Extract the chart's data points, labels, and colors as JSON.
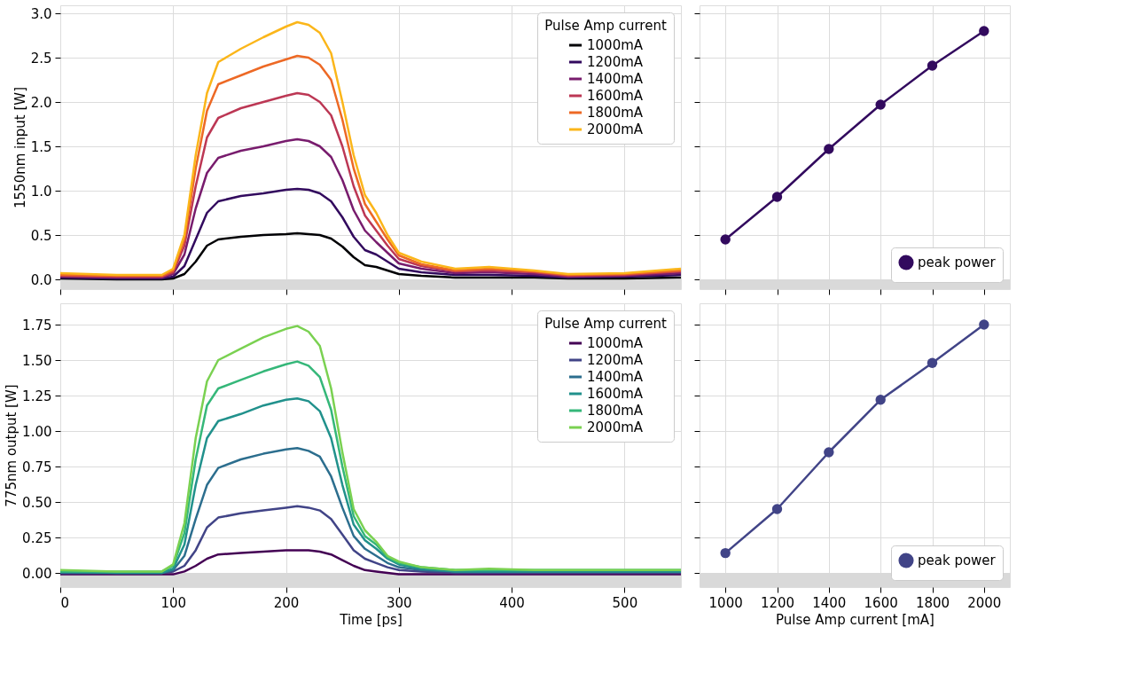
{
  "chart_data": [
    {
      "type": "line",
      "ylabel": "1550nm input [W]",
      "legend_title": "Pulse Amp current",
      "legend": "top right",
      "grid": true,
      "tick_labels": "y",
      "xlim": [
        0,
        550
      ],
      "xticks": [
        0,
        100,
        200,
        300,
        400,
        500
      ],
      "ylim": [
        -0.11,
        3.09
      ],
      "yticks": [
        {
          "value": 0,
          "label": "0.0"
        },
        0.5,
        {
          "value": 1,
          "label": "1.0"
        },
        1.5,
        {
          "value": 2,
          "label": "2.0"
        },
        2.5,
        {
          "value": 3,
          "label": "3.0"
        }
      ],
      "bands": [
        {
          "axis": "y",
          "from": -0.11,
          "to": 0,
          "color": "#d9d9d9"
        }
      ],
      "x": [
        0,
        50,
        90,
        100,
        110,
        120,
        130,
        140,
        160,
        180,
        200,
        210,
        220,
        230,
        240,
        250,
        260,
        270,
        280,
        290,
        300,
        320,
        350,
        380,
        420,
        450,
        500,
        550
      ],
      "series": [
        {
          "name": "1000mA",
          "color": "#000004",
          "values": [
            0.01,
            0.0,
            0.0,
            0.01,
            0.06,
            0.2,
            0.38,
            0.45,
            0.48,
            0.5,
            0.51,
            0.52,
            0.51,
            0.5,
            0.46,
            0.37,
            0.25,
            0.16,
            0.14,
            0.1,
            0.06,
            0.04,
            0.02,
            0.02,
            0.02,
            0.01,
            0.01,
            0.02
          ]
        },
        {
          "name": "1200mA",
          "color": "#320a5e",
          "values": [
            0.02,
            0.01,
            0.01,
            0.03,
            0.15,
            0.45,
            0.75,
            0.88,
            0.94,
            0.97,
            1.01,
            1.02,
            1.01,
            0.97,
            0.88,
            0.7,
            0.48,
            0.33,
            0.28,
            0.2,
            0.12,
            0.08,
            0.05,
            0.05,
            0.04,
            0.02,
            0.03,
            0.05
          ]
        },
        {
          "name": "1400mA",
          "color": "#781c6d",
          "values": [
            0.03,
            0.02,
            0.02,
            0.06,
            0.28,
            0.8,
            1.2,
            1.37,
            1.45,
            1.5,
            1.56,
            1.58,
            1.56,
            1.5,
            1.38,
            1.12,
            0.78,
            0.55,
            0.42,
            0.3,
            0.18,
            0.12,
            0.07,
            0.08,
            0.06,
            0.03,
            0.04,
            0.07
          ]
        },
        {
          "name": "1600mA",
          "color": "#bc3754",
          "values": [
            0.04,
            0.03,
            0.03,
            0.08,
            0.38,
            1.05,
            1.6,
            1.82,
            1.93,
            2.0,
            2.07,
            2.1,
            2.08,
            2.0,
            1.85,
            1.5,
            1.05,
            0.72,
            0.55,
            0.38,
            0.23,
            0.15,
            0.09,
            0.1,
            0.08,
            0.04,
            0.05,
            0.09
          ]
        },
        {
          "name": "1800mA",
          "color": "#ed6925",
          "values": [
            0.05,
            0.04,
            0.04,
            0.1,
            0.45,
            1.25,
            1.9,
            2.2,
            2.3,
            2.4,
            2.48,
            2.52,
            2.5,
            2.42,
            2.25,
            1.8,
            1.25,
            0.85,
            0.65,
            0.45,
            0.27,
            0.17,
            0.1,
            0.12,
            0.09,
            0.05,
            0.06,
            0.1
          ]
        },
        {
          "name": "2000mA",
          "color": "#fbb61a",
          "values": [
            0.07,
            0.05,
            0.05,
            0.12,
            0.5,
            1.4,
            2.1,
            2.45,
            2.6,
            2.73,
            2.85,
            2.9,
            2.87,
            2.78,
            2.55,
            2.0,
            1.4,
            0.95,
            0.75,
            0.5,
            0.3,
            0.2,
            0.12,
            0.14,
            0.1,
            0.06,
            0.07,
            0.12
          ]
        }
      ]
    },
    {
      "type": "line",
      "legend": "bottom right",
      "grid": true,
      "tick_labels": false,
      "marker": "circle",
      "xlim": [
        900,
        2100
      ],
      "xticks": [
        1000,
        1200,
        1400,
        1600,
        1800,
        2000
      ],
      "ylim": [
        -0.11,
        3.09
      ],
      "yticks": [
        {
          "value": 0,
          "label": null
        },
        {
          "value": 0.5,
          "label": null
        },
        {
          "value": 1,
          "label": null
        },
        {
          "value": 1.5,
          "label": null
        },
        {
          "value": 2,
          "label": null
        },
        {
          "value": 2.5,
          "label": null
        },
        {
          "value": 3,
          "label": null
        }
      ],
      "bands": [
        {
          "axis": "y",
          "from": -0.11,
          "to": 0,
          "color": "#d9d9d9"
        }
      ],
      "x": [
        1000,
        1200,
        1400,
        1600,
        1800,
        2000
      ],
      "series": [
        {
          "name": "peak power",
          "color": "#320a5e",
          "values": [
            0.45,
            0.93,
            1.47,
            1.97,
            2.41,
            2.8
          ]
        }
      ]
    },
    {
      "type": "line",
      "xlabel": "Time [ps]",
      "ylabel": "775nm output [W]",
      "legend_title": "Pulse Amp current",
      "legend": "top right",
      "grid": true,
      "xlim": [
        0,
        550
      ],
      "xticks": [
        0,
        100,
        200,
        300,
        400,
        500
      ],
      "ylim": [
        -0.1,
        1.9
      ],
      "yticks": [
        {
          "value": 0,
          "label": "0.00"
        },
        0.25,
        {
          "value": 0.5,
          "label": "0.50"
        },
        0.75,
        {
          "value": 1,
          "label": "1.00"
        },
        1.25,
        {
          "value": 1.5,
          "label": "1.50"
        },
        1.75
      ],
      "bands": [
        {
          "axis": "y",
          "from": -0.1,
          "to": 0,
          "color": "#d9d9d9"
        }
      ],
      "x": [
        0,
        50,
        90,
        100,
        110,
        120,
        130,
        140,
        160,
        180,
        200,
        210,
        220,
        230,
        240,
        250,
        260,
        270,
        280,
        290,
        300,
        320,
        350,
        380,
        420,
        450,
        500,
        550
      ],
      "series": [
        {
          "name": "1000mA",
          "color": "#440154",
          "values": [
            -0.01,
            -0.01,
            -0.01,
            -0.01,
            0.01,
            0.05,
            0.1,
            0.13,
            0.14,
            0.15,
            0.16,
            0.16,
            0.16,
            0.15,
            0.13,
            0.09,
            0.05,
            0.02,
            0.01,
            0.0,
            -0.01,
            -0.01,
            -0.01,
            -0.01,
            -0.01,
            -0.01,
            -0.01,
            -0.01
          ]
        },
        {
          "name": "1200mA",
          "color": "#414487",
          "values": [
            0.0,
            0.0,
            0.0,
            0.01,
            0.05,
            0.16,
            0.32,
            0.39,
            0.42,
            0.44,
            0.46,
            0.47,
            0.46,
            0.44,
            0.38,
            0.27,
            0.16,
            0.1,
            0.07,
            0.04,
            0.02,
            0.01,
            0.0,
            0.0,
            0.0,
            0.0,
            0.0,
            0.0
          ]
        },
        {
          "name": "1400mA",
          "color": "#2c6e8e",
          "values": [
            0.0,
            0.0,
            0.0,
            0.02,
            0.12,
            0.38,
            0.62,
            0.74,
            0.8,
            0.84,
            0.87,
            0.88,
            0.86,
            0.82,
            0.68,
            0.46,
            0.26,
            0.17,
            0.12,
            0.07,
            0.04,
            0.02,
            0.01,
            0.01,
            0.01,
            0.01,
            0.01,
            0.01
          ]
        },
        {
          "name": "1600mA",
          "color": "#21918c",
          "values": [
            0.01,
            0.0,
            0.0,
            0.03,
            0.2,
            0.62,
            0.95,
            1.07,
            1.12,
            1.18,
            1.22,
            1.23,
            1.21,
            1.14,
            0.95,
            0.62,
            0.34,
            0.23,
            0.17,
            0.1,
            0.06,
            0.03,
            0.01,
            0.01,
            0.01,
            0.01,
            0.01,
            0.01
          ]
        },
        {
          "name": "1800mA",
          "color": "#35b779",
          "values": [
            0.01,
            0.01,
            0.01,
            0.05,
            0.28,
            0.8,
            1.18,
            1.3,
            1.36,
            1.42,
            1.47,
            1.49,
            1.46,
            1.38,
            1.15,
            0.75,
            0.4,
            0.26,
            0.2,
            0.11,
            0.07,
            0.04,
            0.02,
            0.02,
            0.02,
            0.02,
            0.02,
            0.02
          ]
        },
        {
          "name": "2000mA",
          "color": "#7ad151",
          "values": [
            0.02,
            0.01,
            0.01,
            0.06,
            0.35,
            0.95,
            1.35,
            1.5,
            1.58,
            1.66,
            1.72,
            1.74,
            1.7,
            1.6,
            1.3,
            0.85,
            0.45,
            0.3,
            0.22,
            0.12,
            0.08,
            0.04,
            0.02,
            0.03,
            0.02,
            0.02,
            0.02,
            0.02
          ]
        }
      ]
    },
    {
      "type": "line",
      "xlabel": "Pulse Amp current [mA]",
      "legend": "bottom right",
      "grid": true,
      "tick_labels": "x",
      "marker": "circle",
      "xlim": [
        900,
        2100
      ],
      "xticks": [
        1000,
        1200,
        1400,
        1600,
        1800,
        2000
      ],
      "ylim": [
        -0.1,
        1.9
      ],
      "yticks": [
        {
          "value": 0,
          "label": null
        },
        {
          "value": 0.25,
          "label": null
        },
        {
          "value": 0.5,
          "label": null
        },
        {
          "value": 0.75,
          "label": null
        },
        {
          "value": 1,
          "label": null
        },
        {
          "value": 1.25,
          "label": null
        },
        {
          "value": 1.5,
          "label": null
        },
        {
          "value": 1.75,
          "label": null
        }
      ],
      "bands": [
        {
          "axis": "y",
          "from": -0.1,
          "to": 0,
          "color": "#d9d9d9"
        }
      ],
      "x": [
        1000,
        1200,
        1400,
        1600,
        1800,
        2000
      ],
      "series": [
        {
          "name": "peak power",
          "color": "#414487",
          "values": [
            0.14,
            0.45,
            0.85,
            1.22,
            1.48,
            1.75
          ]
        }
      ]
    }
  ]
}
